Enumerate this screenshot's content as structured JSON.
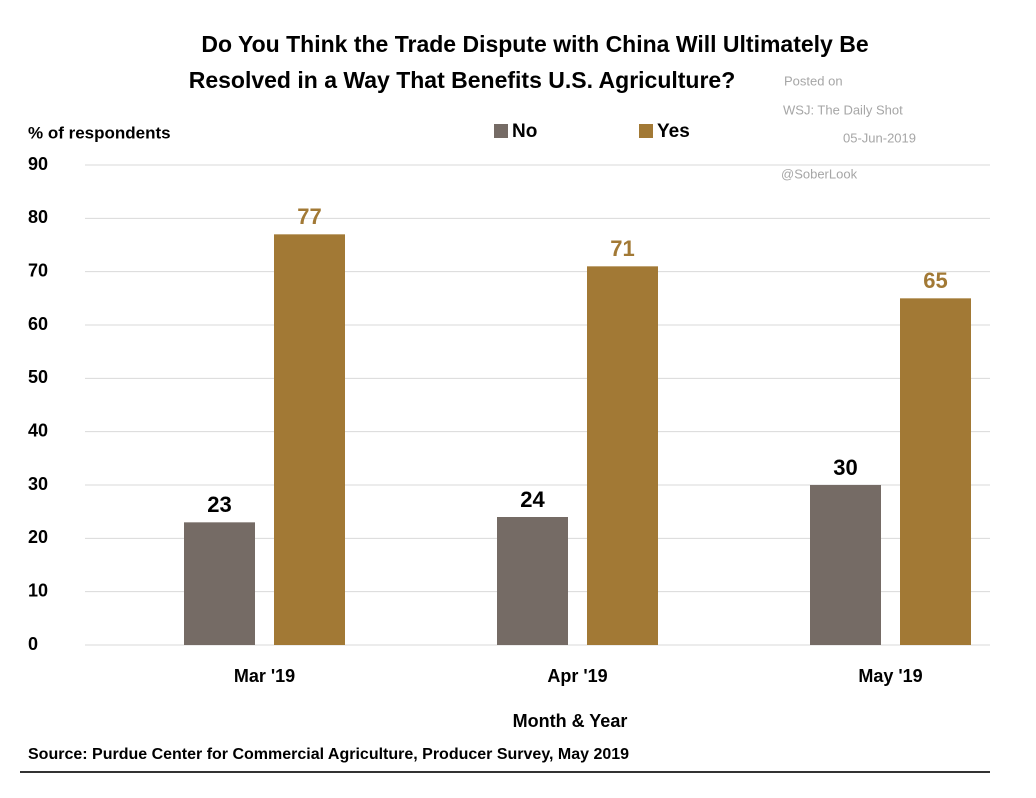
{
  "chart_data": {
    "type": "bar",
    "title": "Do You Think the Trade Dispute with China Will Ultimately Be",
    "title_line2": "Resolved in a Way That Benefits U.S. Agriculture?",
    "annotations": [
      "Posted on",
      "WSJ: The Daily Shot",
      "05-Jun-2019",
      "@SoberLook"
    ],
    "y_label": "% of respondents",
    "x_label": "Month & Year",
    "source": "Source: Purdue Center for Commercial Agriculture, Producer Survey, May 2019",
    "categories": [
      "Mar '19",
      "Apr '19",
      "May '19"
    ],
    "series": [
      {
        "name": "No",
        "color": "#756b65",
        "values": [
          23,
          24,
          30
        ]
      },
      {
        "name": "Yes",
        "color": "#a27935",
        "values": [
          77,
          71,
          65
        ]
      }
    ],
    "ylim": [
      0,
      90
    ],
    "yticks": [
      0,
      10,
      20,
      30,
      40,
      50,
      60,
      70,
      80,
      90
    ],
    "grid": true
  }
}
